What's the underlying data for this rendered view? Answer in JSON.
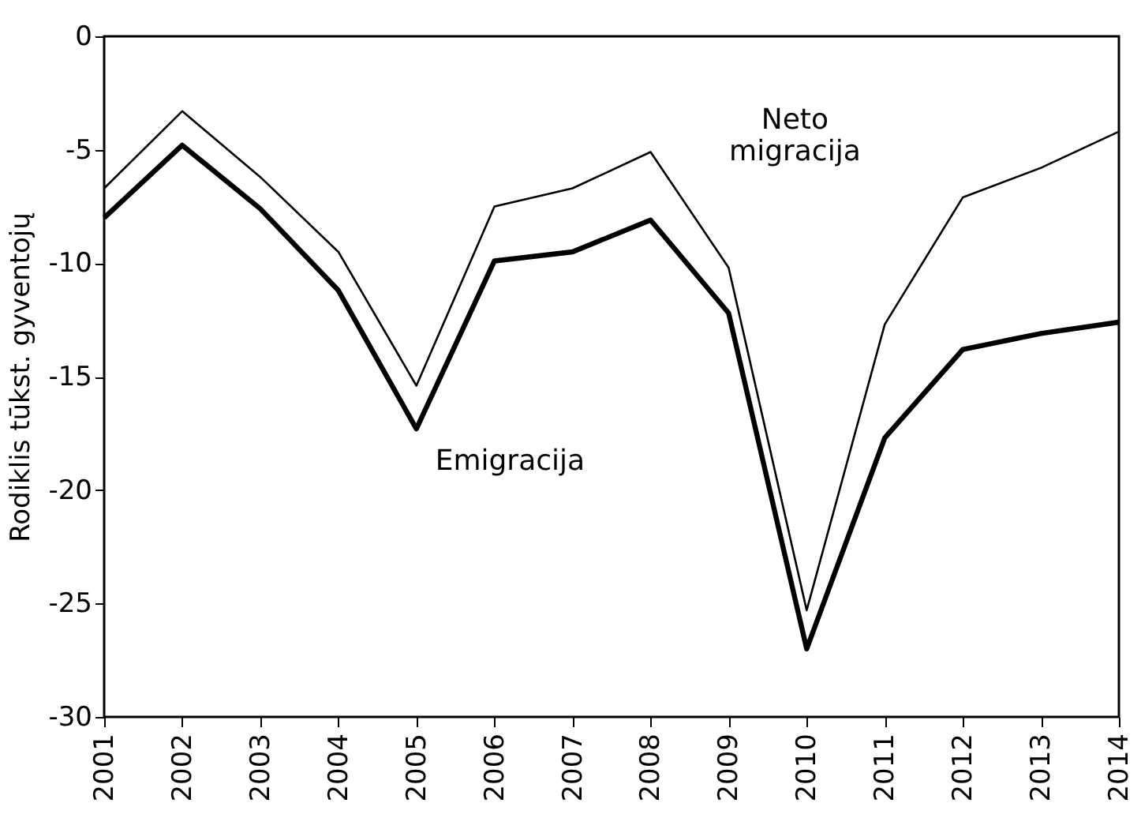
{
  "chart_data": {
    "type": "line",
    "ylabel": "Rodiklis tūkst. gyventojų",
    "categories": [
      "2001",
      "2002",
      "2003",
      "2004",
      "2005",
      "2006",
      "2007",
      "2008",
      "2009",
      "2010",
      "2011",
      "2012",
      "2013",
      "2014"
    ],
    "series": [
      {
        "name": "Neto migracija",
        "color": "#000000",
        "values": [
          -6.7,
          -3.3,
          -6.2,
          -9.5,
          -15.4,
          -7.5,
          -6.7,
          -5.1,
          -10.2,
          -25.3,
          -12.7,
          -7.1,
          -5.8,
          -4.2
        ]
      },
      {
        "name": "Emigracija",
        "color": "#000000",
        "values": [
          -8.0,
          -4.8,
          -7.6,
          -11.2,
          -17.3,
          -9.9,
          -9.5,
          -8.1,
          -12.2,
          -27.0,
          -17.7,
          -13.8,
          -13.1,
          -12.6
        ]
      }
    ],
    "ylim": [
      -30,
      0
    ],
    "yticks": [
      -30,
      -25,
      -20,
      -15,
      -10,
      -5,
      0
    ],
    "grid": false,
    "line_style": "solid",
    "marker": "none"
  }
}
